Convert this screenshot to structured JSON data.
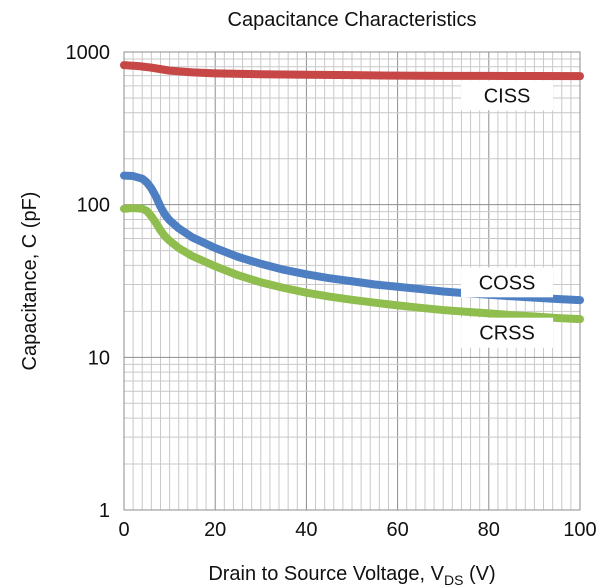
{
  "chart_data": {
    "type": "line",
    "title": "Capacitance Characteristics",
    "xlabel": "Drain to Source Voltage, V",
    "xlabel_sub": "DS",
    "xlabel_suffix": " (V)",
    "ylabel": "Capacitance, C (pF)",
    "xlim": [
      0,
      100
    ],
    "ylim": [
      1,
      1000
    ],
    "yscale": "log",
    "x_ticks": [
      0,
      20,
      40,
      60,
      80,
      100
    ],
    "x_tick_labels": [
      "0",
      "20",
      "40",
      "60",
      "80",
      "100"
    ],
    "y_ticks": [
      1,
      10,
      100,
      1000
    ],
    "y_tick_labels": [
      "1",
      "10",
      "100",
      "1000"
    ],
    "grid": true,
    "series": [
      {
        "name": "CISS",
        "color": "#c74646",
        "x": [
          0,
          3,
          6,
          10,
          15,
          20,
          30,
          40,
          50,
          60,
          70,
          80,
          90,
          100
        ],
        "y": [
          820,
          810,
          790,
          755,
          735,
          725,
          715,
          710,
          705,
          700,
          698,
          697,
          696,
          695
        ]
      },
      {
        "name": "COSS",
        "color": "#4d7fc2",
        "x": [
          0,
          2,
          4,
          5,
          6,
          7,
          8,
          9,
          10,
          12,
          15,
          20,
          25,
          30,
          35,
          40,
          45,
          50,
          55,
          60,
          65,
          70,
          75,
          80,
          85,
          90,
          95,
          100
        ],
        "y": [
          155,
          154,
          148,
          140,
          128,
          113,
          97,
          86,
          79,
          70,
          61,
          52,
          45.5,
          41,
          37.5,
          35,
          33,
          31.5,
          30,
          29,
          28,
          27,
          26.3,
          25.7,
          25.1,
          24.6,
          24.1,
          23.7
        ]
      },
      {
        "name": "CRSS",
        "color": "#8fbe4f",
        "x": [
          0,
          2,
          4,
          5,
          6,
          7,
          8,
          9,
          10,
          12,
          15,
          20,
          25,
          30,
          35,
          40,
          45,
          50,
          55,
          60,
          65,
          70,
          75,
          80,
          85,
          90,
          95,
          100
        ],
        "y": [
          94,
          95,
          94,
          91,
          84,
          76,
          68,
          62,
          58,
          52,
          46,
          39.5,
          34.5,
          31,
          28.5,
          26.5,
          25,
          23.8,
          22.8,
          21.9,
          21.1,
          20.4,
          19.9,
          19.4,
          18.9,
          18.5,
          18.1,
          17.8
        ]
      }
    ],
    "annotations": [
      {
        "text": "CISS",
        "series": "CISS",
        "x": 84,
        "y": 520
      },
      {
        "text": "COSS",
        "series": "COSS",
        "x": 84,
        "y": 31
      },
      {
        "text": "CRSS",
        "series": "CRSS",
        "x": 84,
        "y": 14.5
      }
    ]
  }
}
